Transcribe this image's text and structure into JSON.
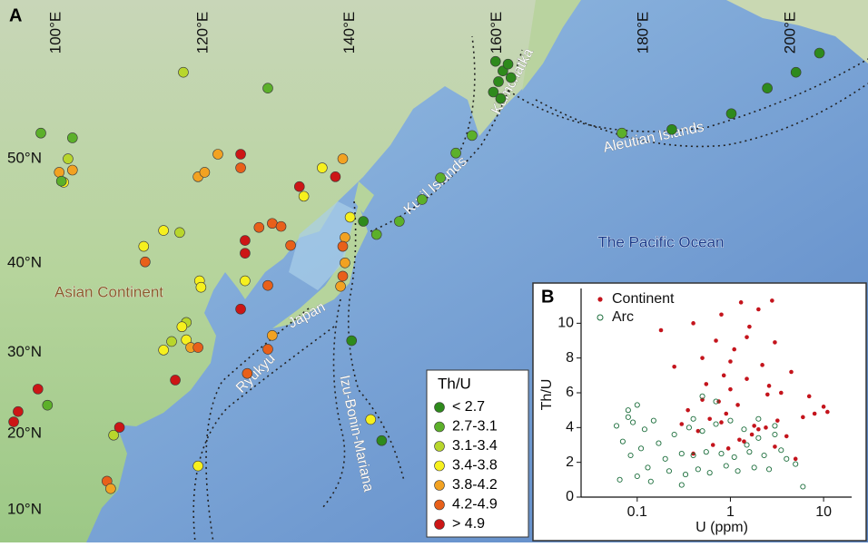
{
  "map": {
    "panel_label": "A",
    "lon_ticks": [
      {
        "value": 100,
        "label": "100°E"
      },
      {
        "value": 120,
        "label": "120°E"
      },
      {
        "value": 140,
        "label": "140°E"
      },
      {
        "value": 160,
        "label": "160°E"
      },
      {
        "value": 180,
        "label": "180°E"
      },
      {
        "value": 200,
        "label": "200°E"
      }
    ],
    "lat_ticks": [
      {
        "value": 10,
        "label": "10°N"
      },
      {
        "value": 20,
        "label": "20°N"
      },
      {
        "value": 30,
        "label": "30°N"
      },
      {
        "value": 40,
        "label": "40°N"
      },
      {
        "value": 50,
        "label": "50°N"
      }
    ],
    "places": {
      "asia": "Asian Continent",
      "pacific": "The Pacific Ocean",
      "kuril": "Kuril Islands",
      "kamchatka": "Kamchatka",
      "aleutian": "Aleutian Islands",
      "japan": "Japan",
      "ryukyu": "Ryukyu",
      "ibm": "Izu-Bonin-Mariana"
    },
    "legend": {
      "title": "Th/U",
      "items": [
        {
          "label": "< 2.7",
          "color": "#2e8a1c"
        },
        {
          "label": "2.7-3.1",
          "color": "#5cb02a"
        },
        {
          "label": "3.1-3.4",
          "color": "#b8d62c"
        },
        {
          "label": "3.4-3.8",
          "color": "#f6f01e"
        },
        {
          "label": "3.8-4.2",
          "color": "#f2a222"
        },
        {
          "label": "4.2-4.9",
          "color": "#e8601a"
        },
        {
          "label": "> 4.9",
          "color": "#cc1616"
        }
      ]
    },
    "sites": [
      [
        159.5,
        55.5,
        0
      ],
      [
        160.2,
        56.3,
        0
      ],
      [
        160.8,
        57.1,
        0
      ],
      [
        161.5,
        57.6,
        0
      ],
      [
        159.8,
        57.8,
        0
      ],
      [
        161.9,
        56.6,
        0
      ],
      [
        160.5,
        55,
        0
      ],
      [
        177,
        52.2,
        1
      ],
      [
        183.8,
        52.5,
        0
      ],
      [
        191.9,
        53.8,
        0
      ],
      [
        196.8,
        55.8,
        0
      ],
      [
        200.7,
        57,
        0
      ],
      [
        203.9,
        58.4,
        0
      ],
      [
        156.6,
        52,
        1
      ],
      [
        154.4,
        50.5,
        1
      ],
      [
        152.3,
        48.3,
        1
      ],
      [
        149.8,
        46.3,
        1
      ],
      [
        146.7,
        44.2,
        1
      ],
      [
        143.6,
        42.9,
        1
      ],
      [
        141.8,
        44.2,
        0
      ],
      [
        139.3,
        42.6,
        4
      ],
      [
        139,
        41.7,
        5
      ],
      [
        139.3,
        40,
        4
      ],
      [
        139,
        38.6,
        5
      ],
      [
        138.7,
        37.5,
        4
      ],
      [
        140,
        44.6,
        3
      ],
      [
        140.2,
        31.4,
        0
      ],
      [
        144.3,
        19.1,
        0
      ],
      [
        142.8,
        21.8,
        3
      ],
      [
        129.4,
        32,
        4
      ],
      [
        128.8,
        30.4,
        5
      ],
      [
        126,
        27.5,
        5
      ],
      [
        128.8,
        37.6,
        5
      ],
      [
        125.7,
        38.1,
        3
      ],
      [
        125.7,
        41,
        6
      ],
      [
        125.7,
        42.3,
        6
      ],
      [
        127.6,
        43.6,
        5
      ],
      [
        129.4,
        44,
        5
      ],
      [
        131.9,
        41.8,
        5
      ],
      [
        130.6,
        43.7,
        5
      ],
      [
        125.1,
        35,
        6
      ],
      [
        122,
        50.4,
        4
      ],
      [
        125.1,
        50.4,
        6
      ],
      [
        125.1,
        49.2,
        5
      ],
      [
        133.1,
        47.5,
        6
      ],
      [
        133.7,
        46.6,
        3
      ],
      [
        136.2,
        49.2,
        3
      ],
      [
        139,
        50,
        4
      ],
      [
        138,
        48.4,
        6
      ],
      [
        119.3,
        48.4,
        4
      ],
      [
        120.2,
        48.8,
        4
      ],
      [
        97.9,
        52.2,
        1
      ],
      [
        102.2,
        51.8,
        1
      ],
      [
        117.3,
        57,
        2
      ],
      [
        128.8,
        55.8,
        1
      ],
      [
        101.6,
        50,
        2
      ],
      [
        100.4,
        48.8,
        4
      ],
      [
        101,
        47.9,
        3
      ],
      [
        100.7,
        48,
        1
      ],
      [
        102.2,
        49,
        4
      ],
      [
        114.6,
        43.3,
        3
      ],
      [
        116.8,
        43.1,
        2
      ],
      [
        111.9,
        41.7,
        3
      ],
      [
        112.1,
        40.1,
        5
      ],
      [
        119.5,
        38.1,
        3
      ],
      [
        119.7,
        37.4,
        3
      ],
      [
        117.7,
        33.5,
        2
      ],
      [
        117.1,
        33,
        3
      ],
      [
        115.7,
        31.3,
        2
      ],
      [
        117.7,
        31.5,
        3
      ],
      [
        118.3,
        30.6,
        4
      ],
      [
        119.3,
        30.6,
        5
      ],
      [
        114.6,
        30.3,
        3
      ],
      [
        116.2,
        26.7,
        6
      ],
      [
        119.3,
        15.8,
        3
      ],
      [
        107.8,
        19.8,
        2
      ],
      [
        108.6,
        20.8,
        6
      ],
      [
        98.8,
        23.6,
        1
      ],
      [
        97.5,
        25.6,
        6
      ],
      [
        94.8,
        22.8,
        6
      ],
      [
        94.2,
        21.5,
        6
      ],
      [
        106.9,
        13.8,
        5
      ],
      [
        107.4,
        12.8,
        4
      ]
    ]
  },
  "chart_data": {
    "type": "scatter",
    "panel_label": "B",
    "x_label": "U (ppm)",
    "y_label": "Th/U",
    "x_log": true,
    "xlim": [
      0.025,
      20
    ],
    "xticks": [
      0.1,
      1,
      10
    ],
    "ylim": [
      0,
      12
    ],
    "yticks": [
      0,
      2,
      4,
      6,
      8,
      10
    ],
    "series": [
      {
        "name": "Continent",
        "color": "#c4141c",
        "marker": "filled",
        "x": [
          0.18,
          0.25,
          0.3,
          0.35,
          0.4,
          0.45,
          0.5,
          0.55,
          0.6,
          0.7,
          0.75,
          0.8,
          0.85,
          0.9,
          1.0,
          1.1,
          1.2,
          1.3,
          1.4,
          1.5,
          1.6,
          1.8,
          2.0,
          2.2,
          2.5,
          2.8,
          3.0,
          3.2,
          3.5,
          4.0,
          4.5,
          5.0,
          6.0,
          7.0,
          8.0,
          10.0,
          11.0,
          0.65,
          0.95,
          1.7,
          2.4,
          1.25,
          0.5,
          0.8,
          2.0,
          3.0,
          1.5,
          0.4,
          1.0,
          2.6
        ],
        "y": [
          9.6,
          7.5,
          4.2,
          5.0,
          10.0,
          3.8,
          8.0,
          6.5,
          4.5,
          9.0,
          5.5,
          10.5,
          7.0,
          4.8,
          6.2,
          8.5,
          5.3,
          11.2,
          3.2,
          6.8,
          9.8,
          4.1,
          10.8,
          7.6,
          5.9,
          11.3,
          8.9,
          4.4,
          6.0,
          3.5,
          7.2,
          2.2,
          4.6,
          5.8,
          4.8,
          5.2,
          4.9,
          3.0,
          2.8,
          3.6,
          4.0,
          3.3,
          5.6,
          4.3,
          3.9,
          2.9,
          9.2,
          2.5,
          7.8,
          6.4
        ]
      },
      {
        "name": "Arc",
        "color": "#1c6e3c",
        "marker": "open",
        "x": [
          0.06,
          0.065,
          0.07,
          0.08,
          0.085,
          0.09,
          0.1,
          0.11,
          0.12,
          0.13,
          0.15,
          0.17,
          0.2,
          0.22,
          0.25,
          0.3,
          0.33,
          0.36,
          0.4,
          0.45,
          0.5,
          0.55,
          0.6,
          0.7,
          0.8,
          0.9,
          1.0,
          1.1,
          1.2,
          1.4,
          1.6,
          1.8,
          2.0,
          2.3,
          2.6,
          3.0,
          3.5,
          4.0,
          5.0,
          6.0,
          0.08,
          0.1,
          0.14,
          0.3,
          0.5,
          0.7,
          1.5,
          2.0,
          3.0,
          0.4
        ],
        "y": [
          4.1,
          1.0,
          3.2,
          4.6,
          2.4,
          4.3,
          1.2,
          2.8,
          3.9,
          1.7,
          4.4,
          3.1,
          2.2,
          1.5,
          3.6,
          2.5,
          1.3,
          4.0,
          2.4,
          1.6,
          3.8,
          2.6,
          1.4,
          4.2,
          2.5,
          1.8,
          4.4,
          2.3,
          1.5,
          3.9,
          2.6,
          1.7,
          4.5,
          2.4,
          1.6,
          4.1,
          2.7,
          2.2,
          1.9,
          0.6,
          5.0,
          5.3,
          0.9,
          0.7,
          5.8,
          5.5,
          3.0,
          3.4,
          3.6,
          4.5
        ]
      }
    ]
  }
}
